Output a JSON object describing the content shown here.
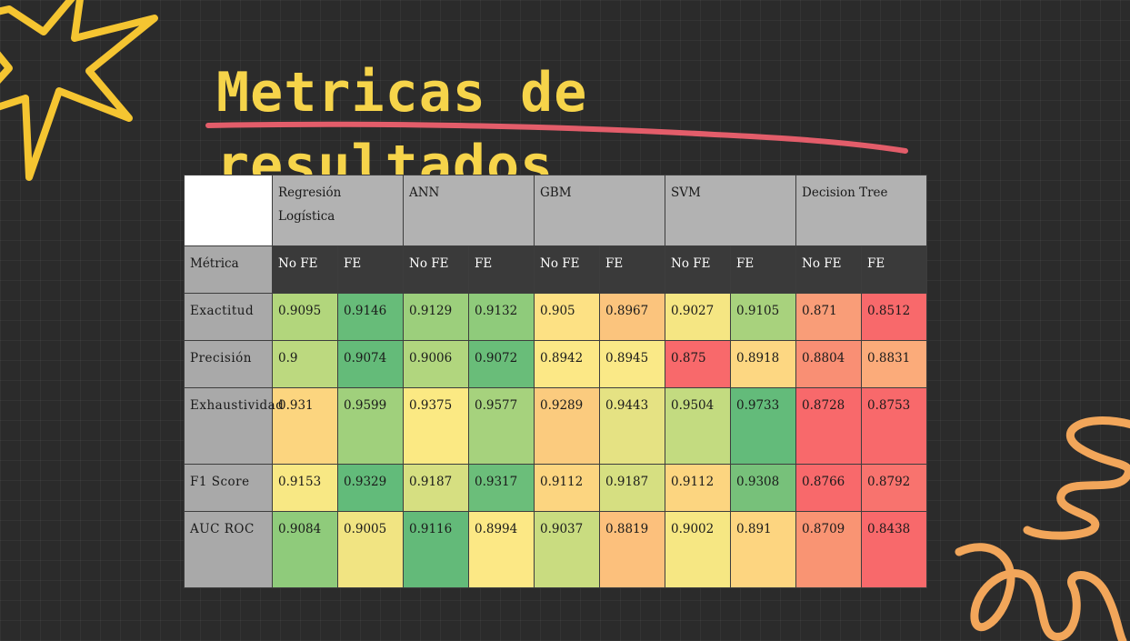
{
  "title": "Metricas de resultados",
  "colors": {
    "title": "#f6d44a",
    "underline": "#e35d6a",
    "decoration": "#f2a65a",
    "star": "#f5c531"
  },
  "table": {
    "models": [
      "Regresión Logística",
      "ANN",
      "GBM",
      "SVM",
      "Decision Tree"
    ],
    "metric_header": "Métrica",
    "subheaders": [
      "No FE",
      "FE",
      "No FE",
      "FE",
      "No FE",
      "FE",
      "No FE",
      "FE",
      "No FE",
      "FE"
    ],
    "rows": [
      {
        "metric": "Exactitud",
        "values": [
          "0.9095",
          "0.9146",
          "0.9129",
          "0.9132",
          "0.905",
          "0.8967",
          "0.9027",
          "0.9105",
          "0.871",
          "0.8512"
        ],
        "colors": [
          "#b2d67c",
          "#67bc79",
          "#9ccf7c",
          "#8fcb7b",
          "#fde184",
          "#fbc47d",
          "#f5e683",
          "#a8d27d",
          "#f99d78",
          "#f8696b"
        ]
      },
      {
        "metric": "Precisión",
        "values": [
          "0.9",
          "0.9074",
          "0.9006",
          "0.9072",
          "0.8942",
          "0.8945",
          "0.875",
          "0.8918",
          "0.8804",
          "0.8831"
        ],
        "colors": [
          "#bcd97f",
          "#64bb79",
          "#b1d67e",
          "#69bd79",
          "#fce886",
          "#fae987",
          "#f8696b",
          "#fdd782",
          "#f98f74",
          "#fbab7a"
        ]
      },
      {
        "metric": "Exhaustividad",
        "values": [
          "0.931",
          "0.9599",
          "0.9375",
          "0.9577",
          "0.9289",
          "0.9443",
          "0.9504",
          "0.9733",
          "0.8728",
          "0.8753"
        ],
        "colors": [
          "#fcd57f",
          "#a0d07c",
          "#fbe983",
          "#a6d27d",
          "#fbcb7e",
          "#e5e283",
          "#c3db80",
          "#63bb7a",
          "#f8696b",
          "#f8696b"
        ]
      },
      {
        "metric": "F1 Score",
        "values": [
          "0.9153",
          "0.9329",
          "0.9187",
          "0.9317",
          "0.9112",
          "0.9187",
          "0.9112",
          "0.9308",
          "0.8766",
          "0.8792"
        ],
        "colors": [
          "#f8e884",
          "#62bb7a",
          "#d6df81",
          "#6bbe7a",
          "#fcd580",
          "#d6df81",
          "#fcd580",
          "#77c17a",
          "#f8696b",
          "#f8736e"
        ]
      },
      {
        "metric": "AUC ROC",
        "values": [
          "0.9084",
          "0.9005",
          "0.9116",
          "0.8994",
          "0.9037",
          "0.8819",
          "0.9002",
          "0.891",
          "0.8709",
          "0.8438"
        ],
        "colors": [
          "#8fcb7b",
          "#f1e482",
          "#63ba79",
          "#fce885",
          "#c9dc80",
          "#fcc07c",
          "#f6e783",
          "#fdd580",
          "#f99473",
          "#f8696b"
        ]
      }
    ]
  }
}
